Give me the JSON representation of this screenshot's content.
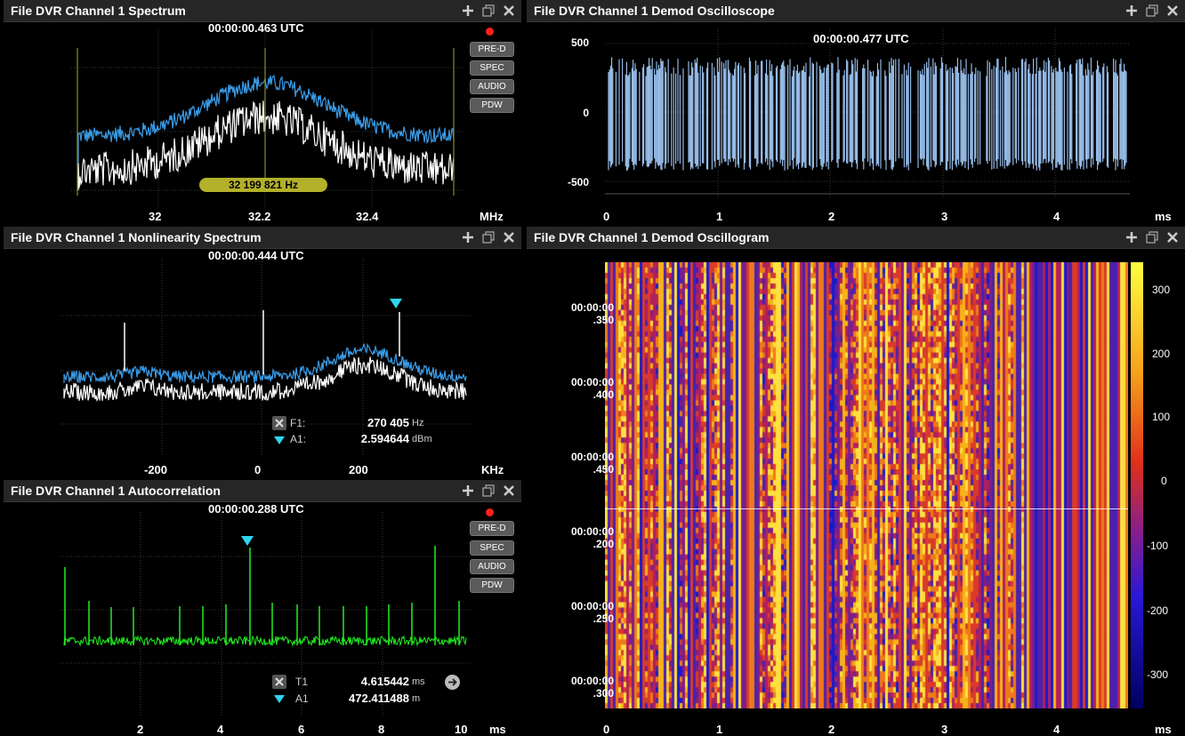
{
  "panels": {
    "spectrum": {
      "title": "File DVR Channel 1 Spectrum",
      "timestamp": "00:00:00.463 UTC",
      "buttons": [
        "PRE-D",
        "SPEC",
        "AUDIO",
        "PDW"
      ],
      "x_ticks": [
        "32",
        "32.2",
        "32.4"
      ],
      "x_unit": "MHz",
      "center_freq": "32 199 821 Hz"
    },
    "oscilloscope": {
      "title": "File DVR Channel 1 Demod Oscilloscope",
      "timestamp": "00:00:00.477 UTC",
      "y_ticks": [
        "500",
        "0",
        "-500"
      ],
      "x_ticks": [
        "0",
        "1",
        "2",
        "3",
        "4"
      ],
      "x_unit": "ms"
    },
    "nonlinearity": {
      "title": "File DVR Channel 1 Nonlinearity Spectrum",
      "timestamp": "00:00:00.444 UTC",
      "x_ticks": [
        "-200",
        "0",
        "200"
      ],
      "x_unit": "KHz",
      "marker": {
        "f_label": "F1:",
        "f_value": "270 405",
        "f_unit": "Hz",
        "a_label": "A1:",
        "a_value": "2.594644",
        "a_unit": "dBm"
      }
    },
    "oscillogram": {
      "title": "File DVR Channel 1 Demod Oscillogram",
      "y_ticks": [
        {
          "l1": "00:00:00",
          "l2": ".350"
        },
        {
          "l1": "00:00:00",
          "l2": ".400"
        },
        {
          "l1": "00:00:00",
          "l2": ".450"
        },
        {
          "l1": "00:00:00",
          "l2": ".200"
        },
        {
          "l1": "00:00:00",
          "l2": ".250"
        },
        {
          "l1": "00:00:00",
          "l2": ".300"
        }
      ],
      "x_ticks": [
        "0",
        "1",
        "2",
        "3",
        "4"
      ],
      "x_unit": "ms",
      "colorbar_ticks": [
        "300",
        "200",
        "100",
        "0",
        "-100",
        "-200",
        "-300"
      ]
    },
    "autocorrelation": {
      "title": "File DVR Channel 1 Autocorrelation",
      "timestamp": "00:00:00.288 UTC",
      "buttons": [
        "PRE-D",
        "SPEC",
        "AUDIO",
        "PDW"
      ],
      "x_ticks": [
        "2",
        "4",
        "6",
        "8",
        "10"
      ],
      "x_unit": "ms",
      "marker": {
        "t_label": "T1",
        "t_value": "4.615442",
        "t_unit": "ms",
        "a_label": "A1",
        "a_value": "472.411488",
        "a_unit": "m"
      }
    }
  },
  "colors": {
    "blue_trace": "#3a9be6",
    "green_trace": "#22ee22",
    "osc_fill": "#9fc6f4",
    "marker": "#2fd4ee",
    "record": "#ff1f1f"
  }
}
